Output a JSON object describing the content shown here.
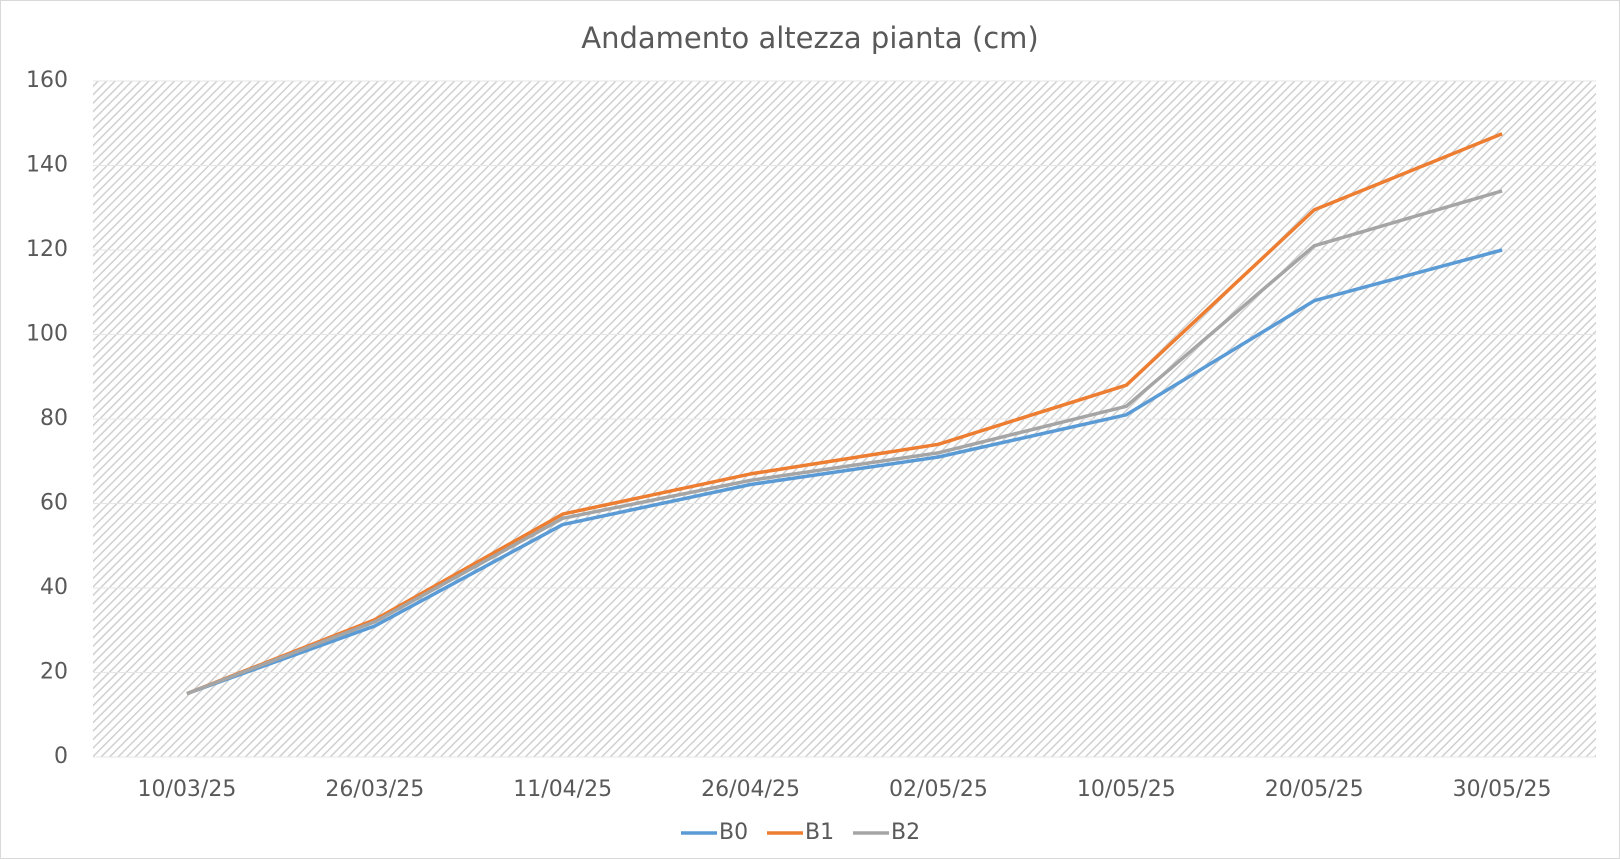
{
  "chart_data": {
    "type": "line",
    "title": "Andamento altezza pianta (cm)",
    "categories": [
      "10/03/25",
      "26/03/25",
      "11/04/25",
      "26/04/25",
      "02/05/25",
      "10/05/25",
      "20/05/25",
      "30/05/25"
    ],
    "series": [
      {
        "name": "B0",
        "color": "#5b9bd5",
        "values": [
          15,
          31,
          55,
          64.5,
          71,
          81,
          108,
          120
        ]
      },
      {
        "name": "B1",
        "color": "#ed7d31",
        "values": [
          15,
          32.5,
          57.5,
          67,
          74,
          88,
          129.5,
          147.5
        ]
      },
      {
        "name": "B2",
        "color": "#a5a5a5",
        "values": [
          15,
          32,
          56.5,
          65.5,
          72,
          83,
          121,
          134
        ]
      }
    ],
    "ylim": [
      0,
      160
    ],
    "yticks": [
      0,
      20,
      40,
      60,
      80,
      100,
      120,
      140,
      160
    ],
    "grid": true,
    "legend": "bottom"
  }
}
